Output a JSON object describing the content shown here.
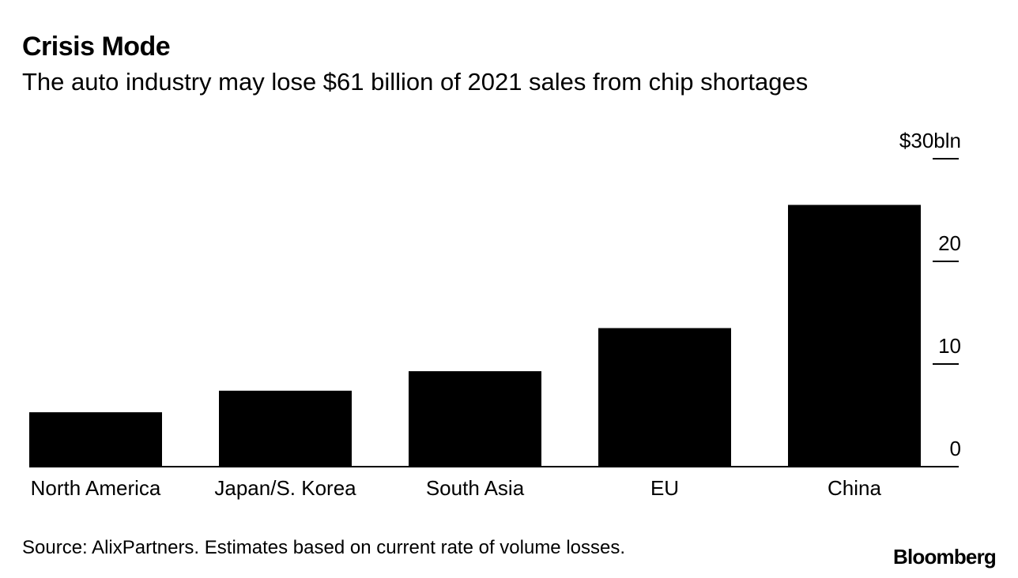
{
  "chart_data": {
    "type": "bar",
    "title": "Crisis Mode",
    "subtitle": "The auto industry may lose $61 billion of 2021 sales from chip shortages",
    "categories": [
      "North America",
      "Japan/S. Korea",
      "South Asia",
      "EU",
      "China"
    ],
    "values": [
      5.3,
      7.4,
      9.3,
      13.5,
      25.5
    ],
    "ylim": [
      0,
      30
    ],
    "yticks": [
      {
        "value": 0,
        "label": "0"
      },
      {
        "value": 10,
        "label": "10"
      },
      {
        "value": 20,
        "label": "20"
      },
      {
        "value": 30,
        "label": "$30bln"
      }
    ],
    "xlabel": "",
    "ylabel": "",
    "bar_color": "#000000",
    "axis_side": "right"
  },
  "footer": {
    "source": "Source: AlixPartners. Estimates based on current rate of volume losses.",
    "brand": "Bloomberg"
  }
}
